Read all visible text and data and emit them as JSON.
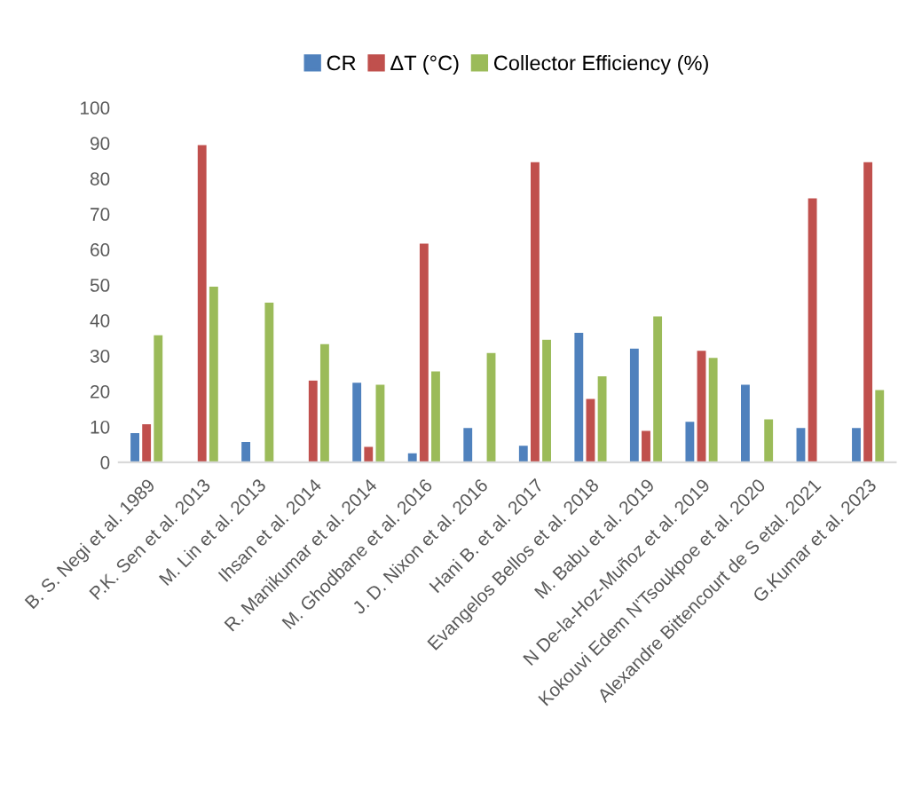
{
  "chart_data": {
    "type": "bar",
    "categories": [
      "B. S. Negi et al. 1989",
      "P.K. Sen et al. 2013",
      "M. Lin et al. 2013",
      "Ihsan et al. 2014",
      "R. Manikumar et al. 2014",
      "M. Ghodbane et al. 2016",
      "J. D. Nixon et al. 2016",
      "Hani B. et al. 2017",
      "Evangelos Bellos et al. 2018",
      "M. Babu et al. 2019",
      "N De-la-Hoz-Muñoz et al. 2019",
      "Kokouvi Edem N'Tsoukpoe et al. 2020",
      "Alexandre Bittencourt de S etal. 2021",
      "G.Kumar et al. 2023"
    ],
    "series": [
      {
        "name": "CR",
        "color": "#4f81bd",
        "values": [
          8.4,
          null,
          5.9,
          null,
          22.6,
          2.7,
          9.8,
          4.8,
          36.7,
          32.2,
          11.6,
          22,
          9.8,
          9.8
        ]
      },
      {
        "name": "ΔT (°C)",
        "color": "#c0504d",
        "values": [
          10.9,
          89.6,
          null,
          23.2,
          4.5,
          61.8,
          null,
          84.8,
          18,
          9,
          31.6,
          null,
          74.6,
          84.8
        ]
      },
      {
        "name": "Collector Efficiency (%)",
        "color": "#9bbb59",
        "values": [
          36,
          49.7,
          45.2,
          33.5,
          22,
          25.8,
          31,
          34.7,
          24.4,
          41.3,
          29.6,
          12.3,
          null,
          20.5
        ]
      }
    ],
    "ylim": [
      0,
      100
    ],
    "yticks": [
      0,
      10,
      20,
      30,
      40,
      50,
      60,
      70,
      80,
      90,
      100
    ],
    "grid": false,
    "legend": "top"
  }
}
